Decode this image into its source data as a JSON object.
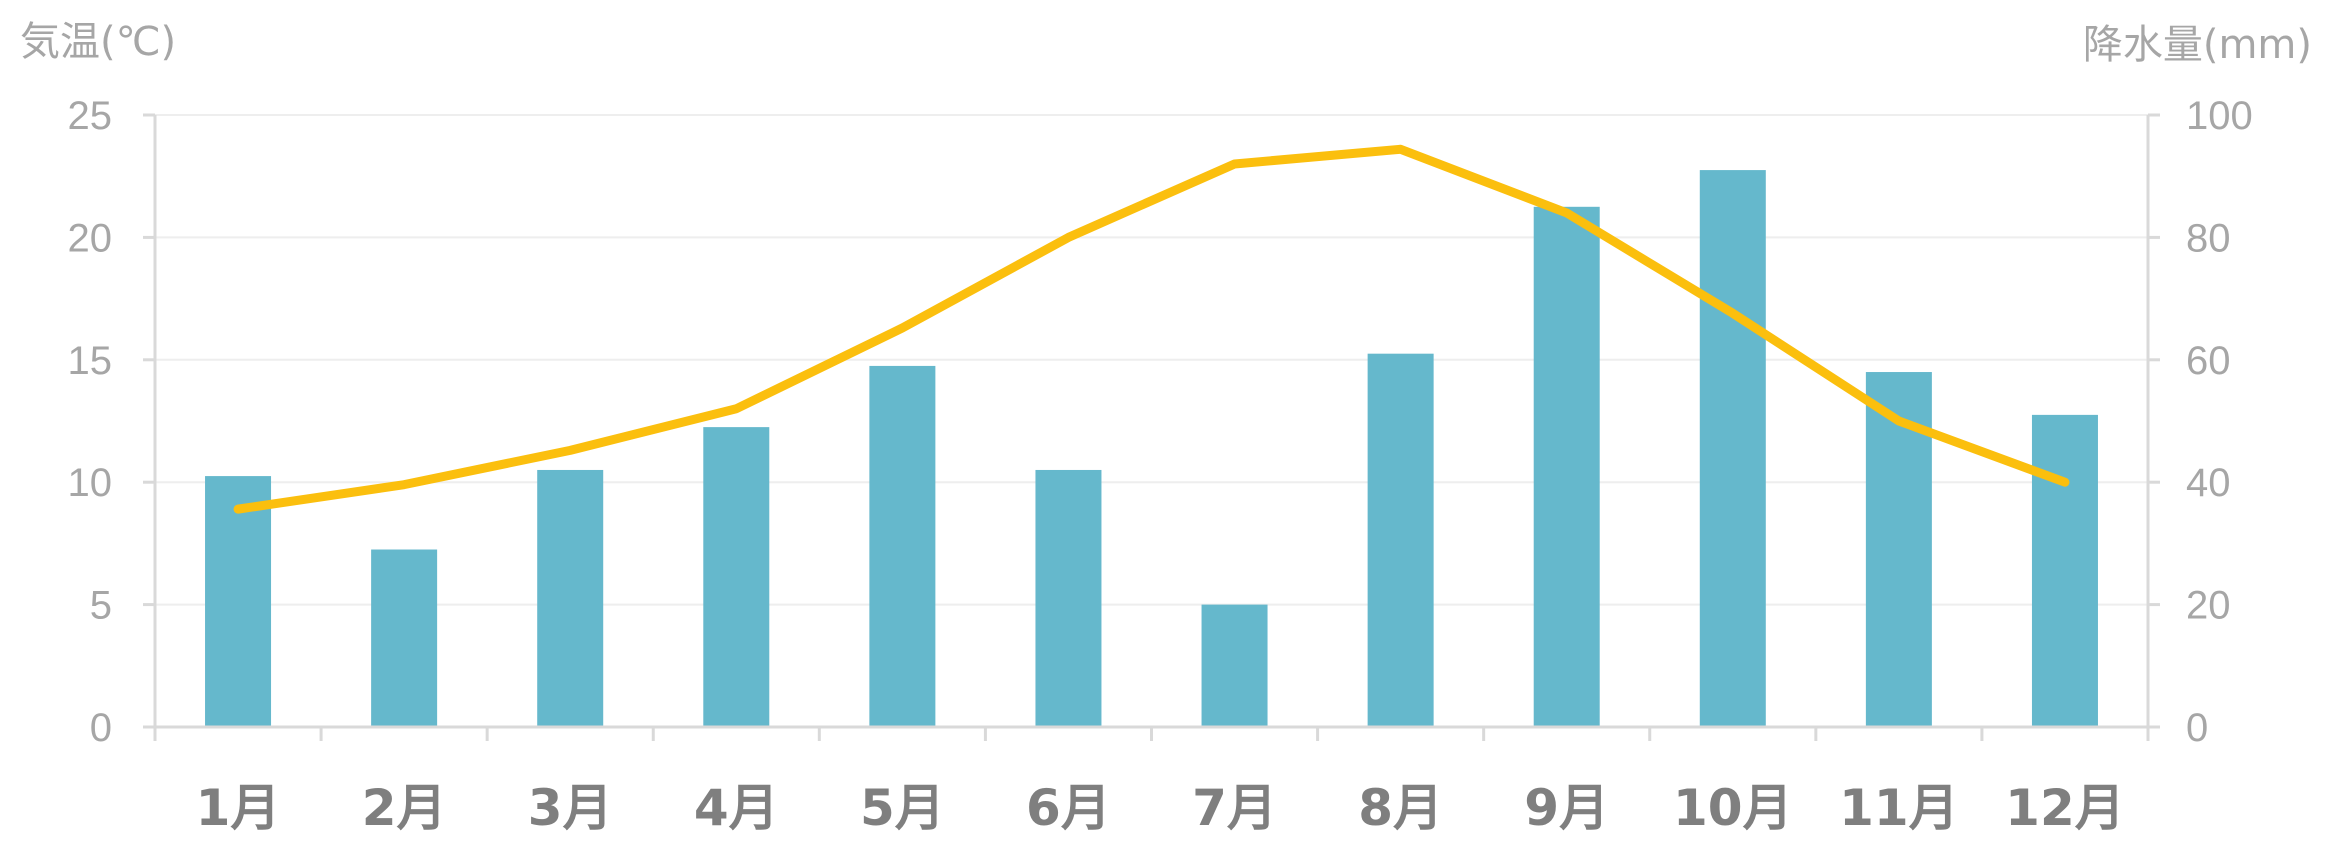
{
  "chart_data": {
    "type": "bar+line",
    "categories": [
      "1月",
      "2月",
      "3月",
      "4月",
      "5月",
      "6月",
      "7月",
      "8月",
      "9月",
      "10月",
      "11月",
      "12月"
    ],
    "left_axis": {
      "label": "気温(℃)",
      "min": 0,
      "max": 25,
      "ticks": [
        0,
        5,
        10,
        15,
        20,
        25
      ]
    },
    "right_axis": {
      "label": "降水量(mm)",
      "min": 0,
      "max": 100,
      "ticks": [
        0,
        20,
        40,
        60,
        80,
        100
      ]
    },
    "series": [
      {
        "kind": "bar",
        "axis": "right",
        "color": "#65b8cc",
        "values": [
          41,
          29,
          42,
          49,
          59,
          42,
          20,
          61,
          85,
          91,
          58,
          51
        ]
      },
      {
        "kind": "line",
        "axis": "left",
        "color": "#fbbf0e",
        "values": [
          8.9,
          9.9,
          11.3,
          13.0,
          16.3,
          20.0,
          23.0,
          23.6,
          21.0,
          16.9,
          12.5,
          10.0
        ]
      }
    ],
    "grid": true,
    "legend": "none"
  }
}
